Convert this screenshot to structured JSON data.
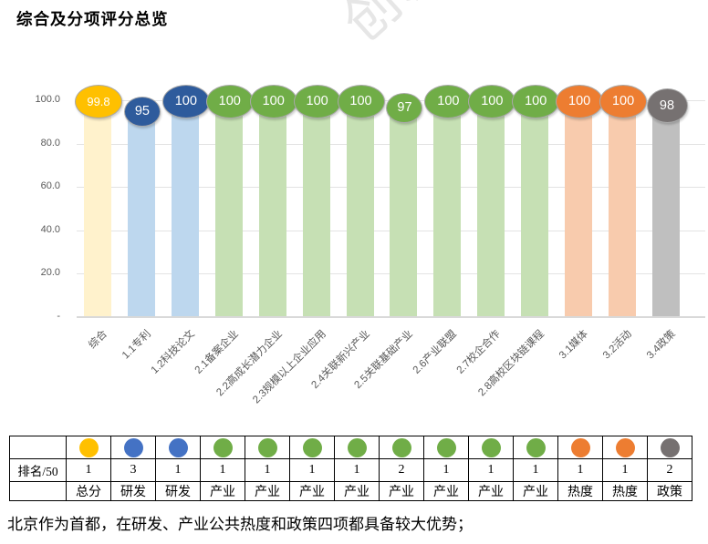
{
  "title": "综合及分项评分总览",
  "watermark": "创新",
  "chart_data": {
    "type": "bar",
    "title": "综合及分项评分总览",
    "categories": [
      "综合",
      "1.1专利",
      "1.2科技论文",
      "2.1备案企业",
      "2.2高成长潜力企业",
      "2.3规模以上企业应用",
      "2.4关联新兴产业",
      "2.5关联基础产业",
      "2.6产业联盟",
      "2.7校企合作",
      "2.8高校区块链课程",
      "3.1媒体",
      "3.2活动",
      "3.4政策"
    ],
    "values": [
      99.8,
      95,
      100,
      100,
      100,
      100,
      100,
      97,
      100,
      100,
      100,
      100,
      100,
      98
    ],
    "groups": [
      "gold",
      "blue",
      "blue",
      "green",
      "green",
      "green",
      "green",
      "green",
      "green",
      "green",
      "green",
      "orange",
      "orange",
      "gray"
    ],
    "xlabel": "",
    "ylabel": "",
    "ylim": [
      0,
      100
    ],
    "yticks": [
      {
        "label": "100.0",
        "value": 100
      },
      {
        "label": "80.0",
        "value": 80
      },
      {
        "label": "60.0",
        "value": 60
      },
      {
        "label": "40.0",
        "value": 40
      },
      {
        "label": "20.0",
        "value": 20
      },
      {
        "label": "-",
        "value": 0
      }
    ],
    "grid": true,
    "legend": "none"
  },
  "colors": {
    "gold": {
      "marker": "#FFC000",
      "bar": "#FFF2CC"
    },
    "blue": {
      "marker": "#2E5B9C",
      "bar": "#BDD7EE"
    },
    "green": {
      "marker": "#70AD47",
      "bar": "#C6E0B4"
    },
    "orange": {
      "marker": "#ED7D31",
      "bar": "#F8CBAD"
    },
    "gray": {
      "marker": "#767171",
      "bar": "#BFBFBF"
    }
  },
  "table": {
    "row_header": "排名/50",
    "dot_colors": {
      "gold": "#FFC000",
      "blue": "#4472C4",
      "green": "#70AD47",
      "orange": "#ED7D31",
      "gray": "#767171"
    },
    "columns": [
      {
        "group": "gold",
        "rank": "1",
        "category": "总分"
      },
      {
        "group": "blue",
        "rank": "3",
        "category": "研发"
      },
      {
        "group": "blue",
        "rank": "1",
        "category": "研发"
      },
      {
        "group": "green",
        "rank": "1",
        "category": "产业"
      },
      {
        "group": "green",
        "rank": "1",
        "category": "产业"
      },
      {
        "group": "green",
        "rank": "1",
        "category": "产业"
      },
      {
        "group": "green",
        "rank": "1",
        "category": "产业"
      },
      {
        "group": "green",
        "rank": "2",
        "category": "产业"
      },
      {
        "group": "green",
        "rank": "1",
        "category": "产业"
      },
      {
        "group": "green",
        "rank": "1",
        "category": "产业"
      },
      {
        "group": "green",
        "rank": "1",
        "category": "产业"
      },
      {
        "group": "orange",
        "rank": "1",
        "category": "热度"
      },
      {
        "group": "orange",
        "rank": "1",
        "category": "热度"
      },
      {
        "group": "gray",
        "rank": "2",
        "category": "政策"
      }
    ]
  },
  "footer": {
    "text": "北京作为首都，在研发、产业公共热度和政策四项都具备较大优势；"
  }
}
